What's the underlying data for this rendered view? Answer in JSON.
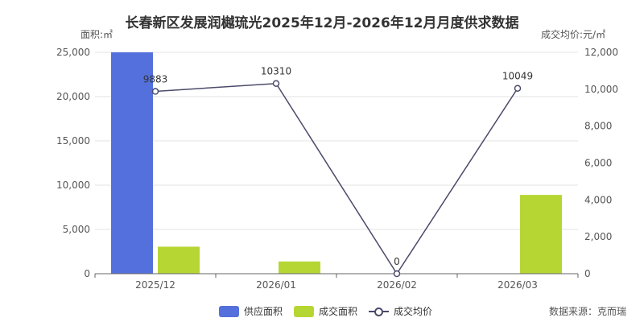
{
  "chart_data": {
    "type": "bar",
    "title": "长春新区发展润樾琉光2025年12月-2026年12月月度供求数据",
    "categories": [
      "2025/12",
      "2026/01",
      "2026/02",
      "2026/03"
    ],
    "y_left": {
      "name": "面积:㎡",
      "ylim": [
        0,
        25000
      ],
      "ticks": [
        "0",
        "5,000",
        "10,000",
        "15,000",
        "20,000",
        "25,000"
      ]
    },
    "y_right": {
      "name": "成交均价:元/㎡",
      "ylim": [
        0,
        12000
      ],
      "ticks": [
        "0",
        "2,000",
        "4,000",
        "6,000",
        "8,000",
        "10,000",
        "12,000"
      ]
    },
    "series": [
      {
        "name": "供应面积",
        "type": "bar",
        "axis": "left",
        "color": "#5470dc",
        "values": [
          25000,
          0,
          0,
          0
        ]
      },
      {
        "name": "成交面积",
        "type": "bar",
        "axis": "left",
        "color": "#b6d634",
        "values": [
          3050,
          1380,
          0,
          8900
        ]
      },
      {
        "name": "成交均价",
        "type": "line",
        "axis": "right",
        "color": "#4a4a6a",
        "values": [
          9883,
          10310,
          0,
          10049
        ],
        "labels": [
          "9883",
          "10310",
          "0",
          "10049"
        ]
      }
    ],
    "grid": true,
    "legend_position": "bottom"
  },
  "source": "数据来源：克而瑞"
}
